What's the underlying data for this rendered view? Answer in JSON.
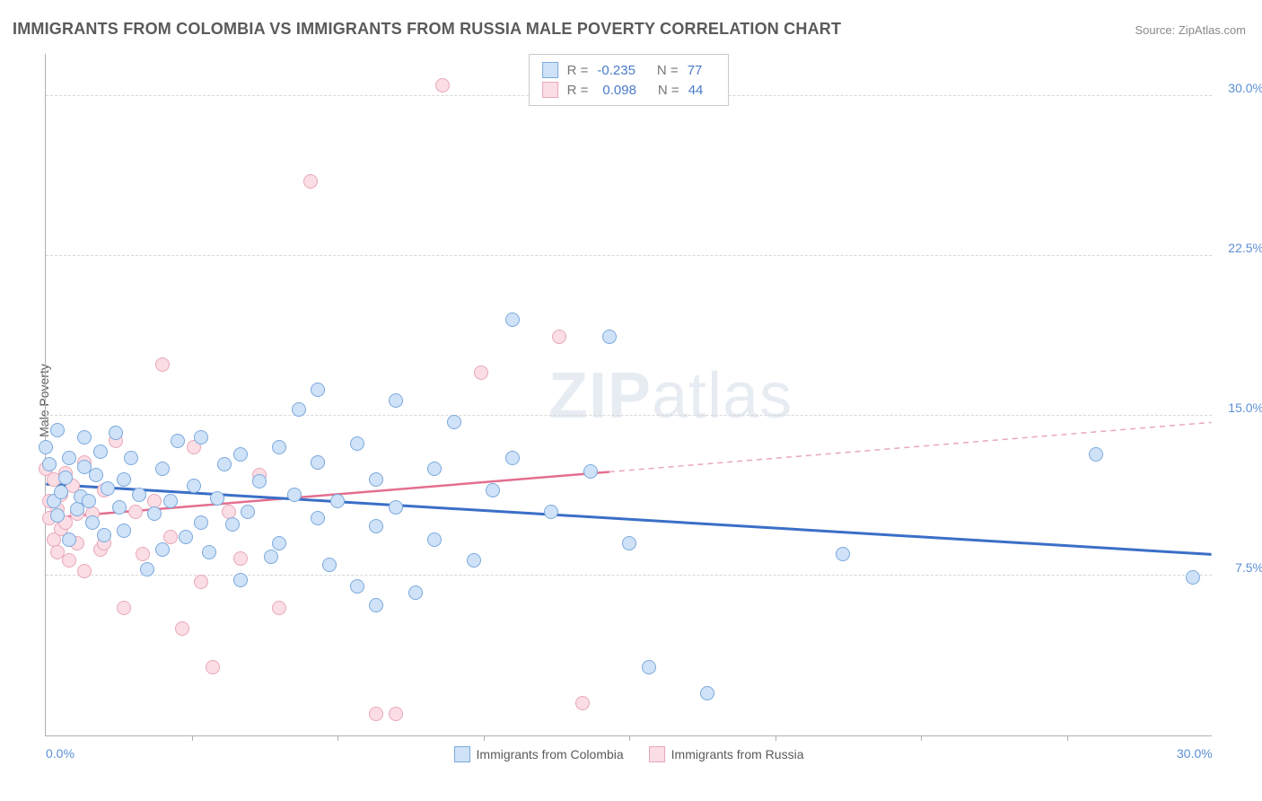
{
  "title": "IMMIGRANTS FROM COLOMBIA VS IMMIGRANTS FROM RUSSIA MALE POVERTY CORRELATION CHART",
  "source": "Source: ZipAtlas.com",
  "y_axis_label": "Male Poverty",
  "watermark_bold": "ZIP",
  "watermark_rest": "atlas",
  "chart": {
    "type": "scatter",
    "xlim": [
      0,
      30
    ],
    "ylim": [
      0,
      32
    ],
    "x_ticks": [
      0,
      30
    ],
    "x_tick_labels": [
      "0.0%",
      "30.0%"
    ],
    "x_minor_ticks": [
      3.75,
      7.5,
      11.25,
      15,
      18.75,
      22.5,
      26.25
    ],
    "y_ticks": [
      7.5,
      15.0,
      22.5,
      30.0
    ],
    "y_tick_labels": [
      "7.5%",
      "15.0%",
      "22.5%",
      "30.0%"
    ],
    "background_color": "#ffffff",
    "grid_color": "#d8d8d8",
    "axis_color": "#b0b0b0",
    "marker_radius": 8,
    "series": {
      "colombia": {
        "label": "Immigrants from Colombia",
        "fill": "#cfe2f7",
        "stroke": "#7ba9de",
        "R": "-0.235",
        "N": "77",
        "trend": {
          "y_at_x0": 11.8,
          "y_at_x30": 8.5,
          "solid_until_x": 30.0
        },
        "points": [
          [
            0.0,
            13.5
          ],
          [
            0.1,
            12.7
          ],
          [
            0.2,
            11.0
          ],
          [
            0.3,
            10.3
          ],
          [
            0.3,
            14.3
          ],
          [
            0.4,
            11.4
          ],
          [
            0.5,
            12.1
          ],
          [
            0.6,
            13.0
          ],
          [
            0.6,
            9.2
          ],
          [
            0.8,
            10.6
          ],
          [
            0.9,
            11.2
          ],
          [
            1.0,
            12.6
          ],
          [
            1.0,
            14.0
          ],
          [
            1.1,
            11.0
          ],
          [
            1.2,
            10.0
          ],
          [
            1.3,
            12.2
          ],
          [
            1.4,
            13.3
          ],
          [
            1.5,
            9.4
          ],
          [
            1.6,
            11.6
          ],
          [
            1.8,
            14.2
          ],
          [
            1.9,
            10.7
          ],
          [
            2.0,
            12.0
          ],
          [
            2.0,
            9.6
          ],
          [
            2.2,
            13.0
          ],
          [
            2.4,
            11.3
          ],
          [
            2.6,
            7.8
          ],
          [
            2.8,
            10.4
          ],
          [
            3.0,
            12.5
          ],
          [
            3.0,
            8.7
          ],
          [
            3.2,
            11.0
          ],
          [
            3.4,
            13.8
          ],
          [
            3.6,
            9.3
          ],
          [
            3.8,
            11.7
          ],
          [
            4.0,
            10.0
          ],
          [
            4.0,
            14.0
          ],
          [
            4.2,
            8.6
          ],
          [
            4.4,
            11.1
          ],
          [
            4.6,
            12.7
          ],
          [
            4.8,
            9.9
          ],
          [
            5.0,
            13.2
          ],
          [
            5.0,
            7.3
          ],
          [
            5.2,
            10.5
          ],
          [
            5.5,
            11.9
          ],
          [
            5.8,
            8.4
          ],
          [
            6.0,
            13.5
          ],
          [
            6.0,
            9.0
          ],
          [
            6.4,
            11.3
          ],
          [
            6.5,
            15.3
          ],
          [
            7.0,
            10.2
          ],
          [
            7.0,
            12.8
          ],
          [
            7.0,
            16.2
          ],
          [
            7.3,
            8.0
          ],
          [
            7.5,
            11.0
          ],
          [
            8.0,
            13.7
          ],
          [
            8.0,
            7.0
          ],
          [
            8.5,
            9.8
          ],
          [
            8.5,
            12.0
          ],
          [
            8.5,
            6.1
          ],
          [
            9.0,
            10.7
          ],
          [
            9.0,
            15.7
          ],
          [
            9.5,
            6.7
          ],
          [
            10.0,
            12.5
          ],
          [
            10.0,
            9.2
          ],
          [
            10.5,
            14.7
          ],
          [
            11.0,
            8.2
          ],
          [
            11.5,
            11.5
          ],
          [
            12.0,
            13.0
          ],
          [
            12.0,
            19.5
          ],
          [
            13.0,
            10.5
          ],
          [
            14.0,
            12.4
          ],
          [
            14.5,
            18.7
          ],
          [
            15.0,
            9.0
          ],
          [
            15.5,
            3.2
          ],
          [
            17.0,
            2.0
          ],
          [
            20.5,
            8.5
          ],
          [
            27.0,
            13.2
          ],
          [
            29.5,
            7.4
          ]
        ]
      },
      "russia": {
        "label": "Immigrants from Russia",
        "fill": "#fbdde4",
        "stroke": "#e8a8b8",
        "R": "0.098",
        "N": "44",
        "trend": {
          "y_at_x0": 10.2,
          "y_at_x30": 14.7,
          "solid_until_x": 14.5
        },
        "points": [
          [
            0.0,
            12.5
          ],
          [
            0.1,
            11.0
          ],
          [
            0.1,
            10.2
          ],
          [
            0.2,
            12.0
          ],
          [
            0.2,
            9.2
          ],
          [
            0.3,
            10.6
          ],
          [
            0.3,
            8.6
          ],
          [
            0.4,
            11.3
          ],
          [
            0.4,
            9.7
          ],
          [
            0.5,
            10.0
          ],
          [
            0.5,
            12.3
          ],
          [
            0.6,
            8.2
          ],
          [
            0.7,
            11.7
          ],
          [
            0.8,
            9.0
          ],
          [
            0.8,
            10.4
          ],
          [
            1.0,
            12.8
          ],
          [
            1.0,
            7.7
          ],
          [
            1.2,
            10.4
          ],
          [
            1.4,
            8.7
          ],
          [
            1.5,
            11.5
          ],
          [
            1.5,
            9.0
          ],
          [
            1.8,
            13.8
          ],
          [
            2.0,
            6.0
          ],
          [
            2.3,
            10.5
          ],
          [
            2.5,
            8.5
          ],
          [
            2.8,
            11.0
          ],
          [
            3.0,
            17.4
          ],
          [
            3.2,
            9.3
          ],
          [
            3.5,
            5.0
          ],
          [
            3.8,
            13.5
          ],
          [
            4.0,
            7.2
          ],
          [
            4.3,
            3.2
          ],
          [
            4.7,
            10.5
          ],
          [
            5.0,
            8.3
          ],
          [
            5.5,
            12.2
          ],
          [
            6.0,
            6.0
          ],
          [
            6.8,
            26.0
          ],
          [
            7.0,
            12.8
          ],
          [
            8.5,
            1.0
          ],
          [
            9.0,
            1.0
          ],
          [
            10.2,
            30.5
          ],
          [
            11.2,
            17.0
          ],
          [
            13.2,
            18.7
          ],
          [
            13.8,
            1.5
          ]
        ]
      }
    }
  },
  "legend_top": {
    "R_label": "R =",
    "N_label": "N ="
  }
}
